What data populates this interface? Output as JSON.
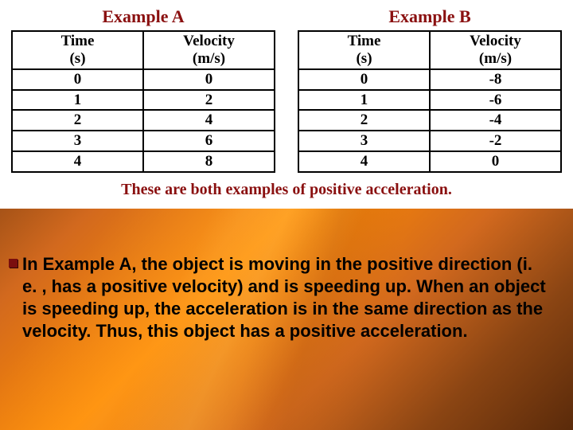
{
  "panel": {
    "background_color": "#ffffff",
    "title_color": "#8a1010",
    "border_color": "#000000",
    "cell_text_color": "#000000",
    "caption_color": "#8a1010",
    "font_family_titles": "Georgia",
    "title_fontsize": 22,
    "header_fontsize": 19,
    "cell_fontsize": 19,
    "caption_fontsize": 20
  },
  "tableA": {
    "title": "Example A",
    "col1_header_l1": "Time",
    "col1_header_l2": "(s)",
    "col2_header_l1": "Velocity",
    "col2_header_l2": "(m/s)",
    "r0c0": "0",
    "r0c1": "0",
    "r1c0": "1",
    "r1c1": "2",
    "r2c0": "2",
    "r2c1": "4",
    "r3c0": "3",
    "r3c1": "6",
    "r4c0": "4",
    "r4c1": "8"
  },
  "tableB": {
    "title": "Example B",
    "col1_header_l1": "Time",
    "col1_header_l2": "(s)",
    "col2_header_l1": "Velocity",
    "col2_header_l2": "(m/s)",
    "r0c0": "0",
    "r0c1": "-8",
    "r1c0": "1",
    "r1c1": "-6",
    "r2c0": "2",
    "r2c1": "-4",
    "r3c0": "3",
    "r3c1": "-2",
    "r4c0": "4",
    "r4c1": "0"
  },
  "caption": "These are both examples of positive acceleration.",
  "body_text": "In Example A, the object is moving in the positive direction (i. e. , has a positive velocity) and is speeding up. When an object is speeding up, the acceleration is in the same direction as the velocity. Thus, this object has a positive acceleration.",
  "body_style": {
    "font_family": "Verdana",
    "font_size": 22,
    "font_weight": "bold",
    "color": "#000000",
    "bullet_color": "#7a0e0e"
  },
  "background": {
    "gradient_colors": [
      "#5a2a0a",
      "#8b4513",
      "#d2691e",
      "#ff8c00",
      "#d2691e",
      "#8b4513",
      "#5a2a0a"
    ]
  }
}
